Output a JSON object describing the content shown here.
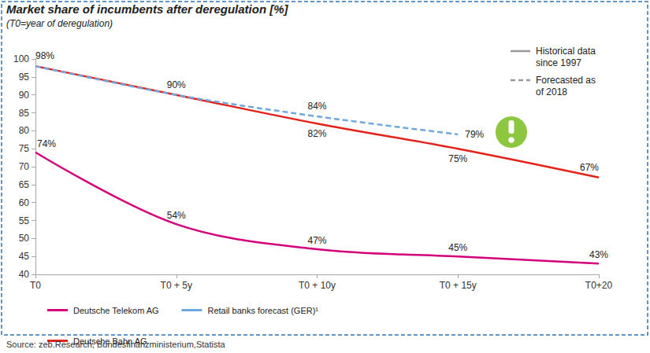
{
  "chart_data": {
    "type": "line",
    "title": "Market share of incumbents after deregulation [%]",
    "subtitle": "(T0=year of deregulation)",
    "source": "Source: zeb.Research, Bundesfinanzministerium,Statista",
    "categories": [
      "T0",
      "T0 + 5y",
      "T0 + 10y",
      "T0 + 15y",
      "T0+20"
    ],
    "series": [
      {
        "name": "Deutsche Telekom AG",
        "color": "#d4007a",
        "line_style": "solid",
        "values": [
          74,
          54,
          47,
          45,
          43
        ],
        "value_labels": [
          "74%",
          "54%",
          "47%",
          "45%",
          "43%"
        ]
      },
      {
        "name": "Retail banks forecast (GER)¹",
        "color": "#6fa8dc",
        "line_style": "dashed",
        "values": [
          98,
          90,
          84,
          79,
          null
        ],
        "value_labels": [
          null,
          null,
          "84%",
          "79%",
          null
        ]
      },
      {
        "name": "Deutsche Bahn AG",
        "color": "#e3231b",
        "line_style": "solid",
        "values": [
          98,
          90,
          82,
          75,
          67
        ],
        "value_labels": [
          "98%",
          "90%",
          "82%",
          "75%",
          "67%"
        ]
      }
    ],
    "key": [
      {
        "label": "Historical data\nsince 1997",
        "line_style": "solid",
        "color": "#999999"
      },
      {
        "label": "Forecasted as\nof 2018",
        "line_style": "dashed",
        "color": "#999999"
      }
    ],
    "ylim": [
      40,
      100
    ],
    "yticks": [
      40,
      45,
      50,
      55,
      60,
      65,
      70,
      75,
      80,
      85,
      90,
      95,
      100
    ],
    "grid": false,
    "data_labels": true,
    "legend": "bottom-left"
  }
}
